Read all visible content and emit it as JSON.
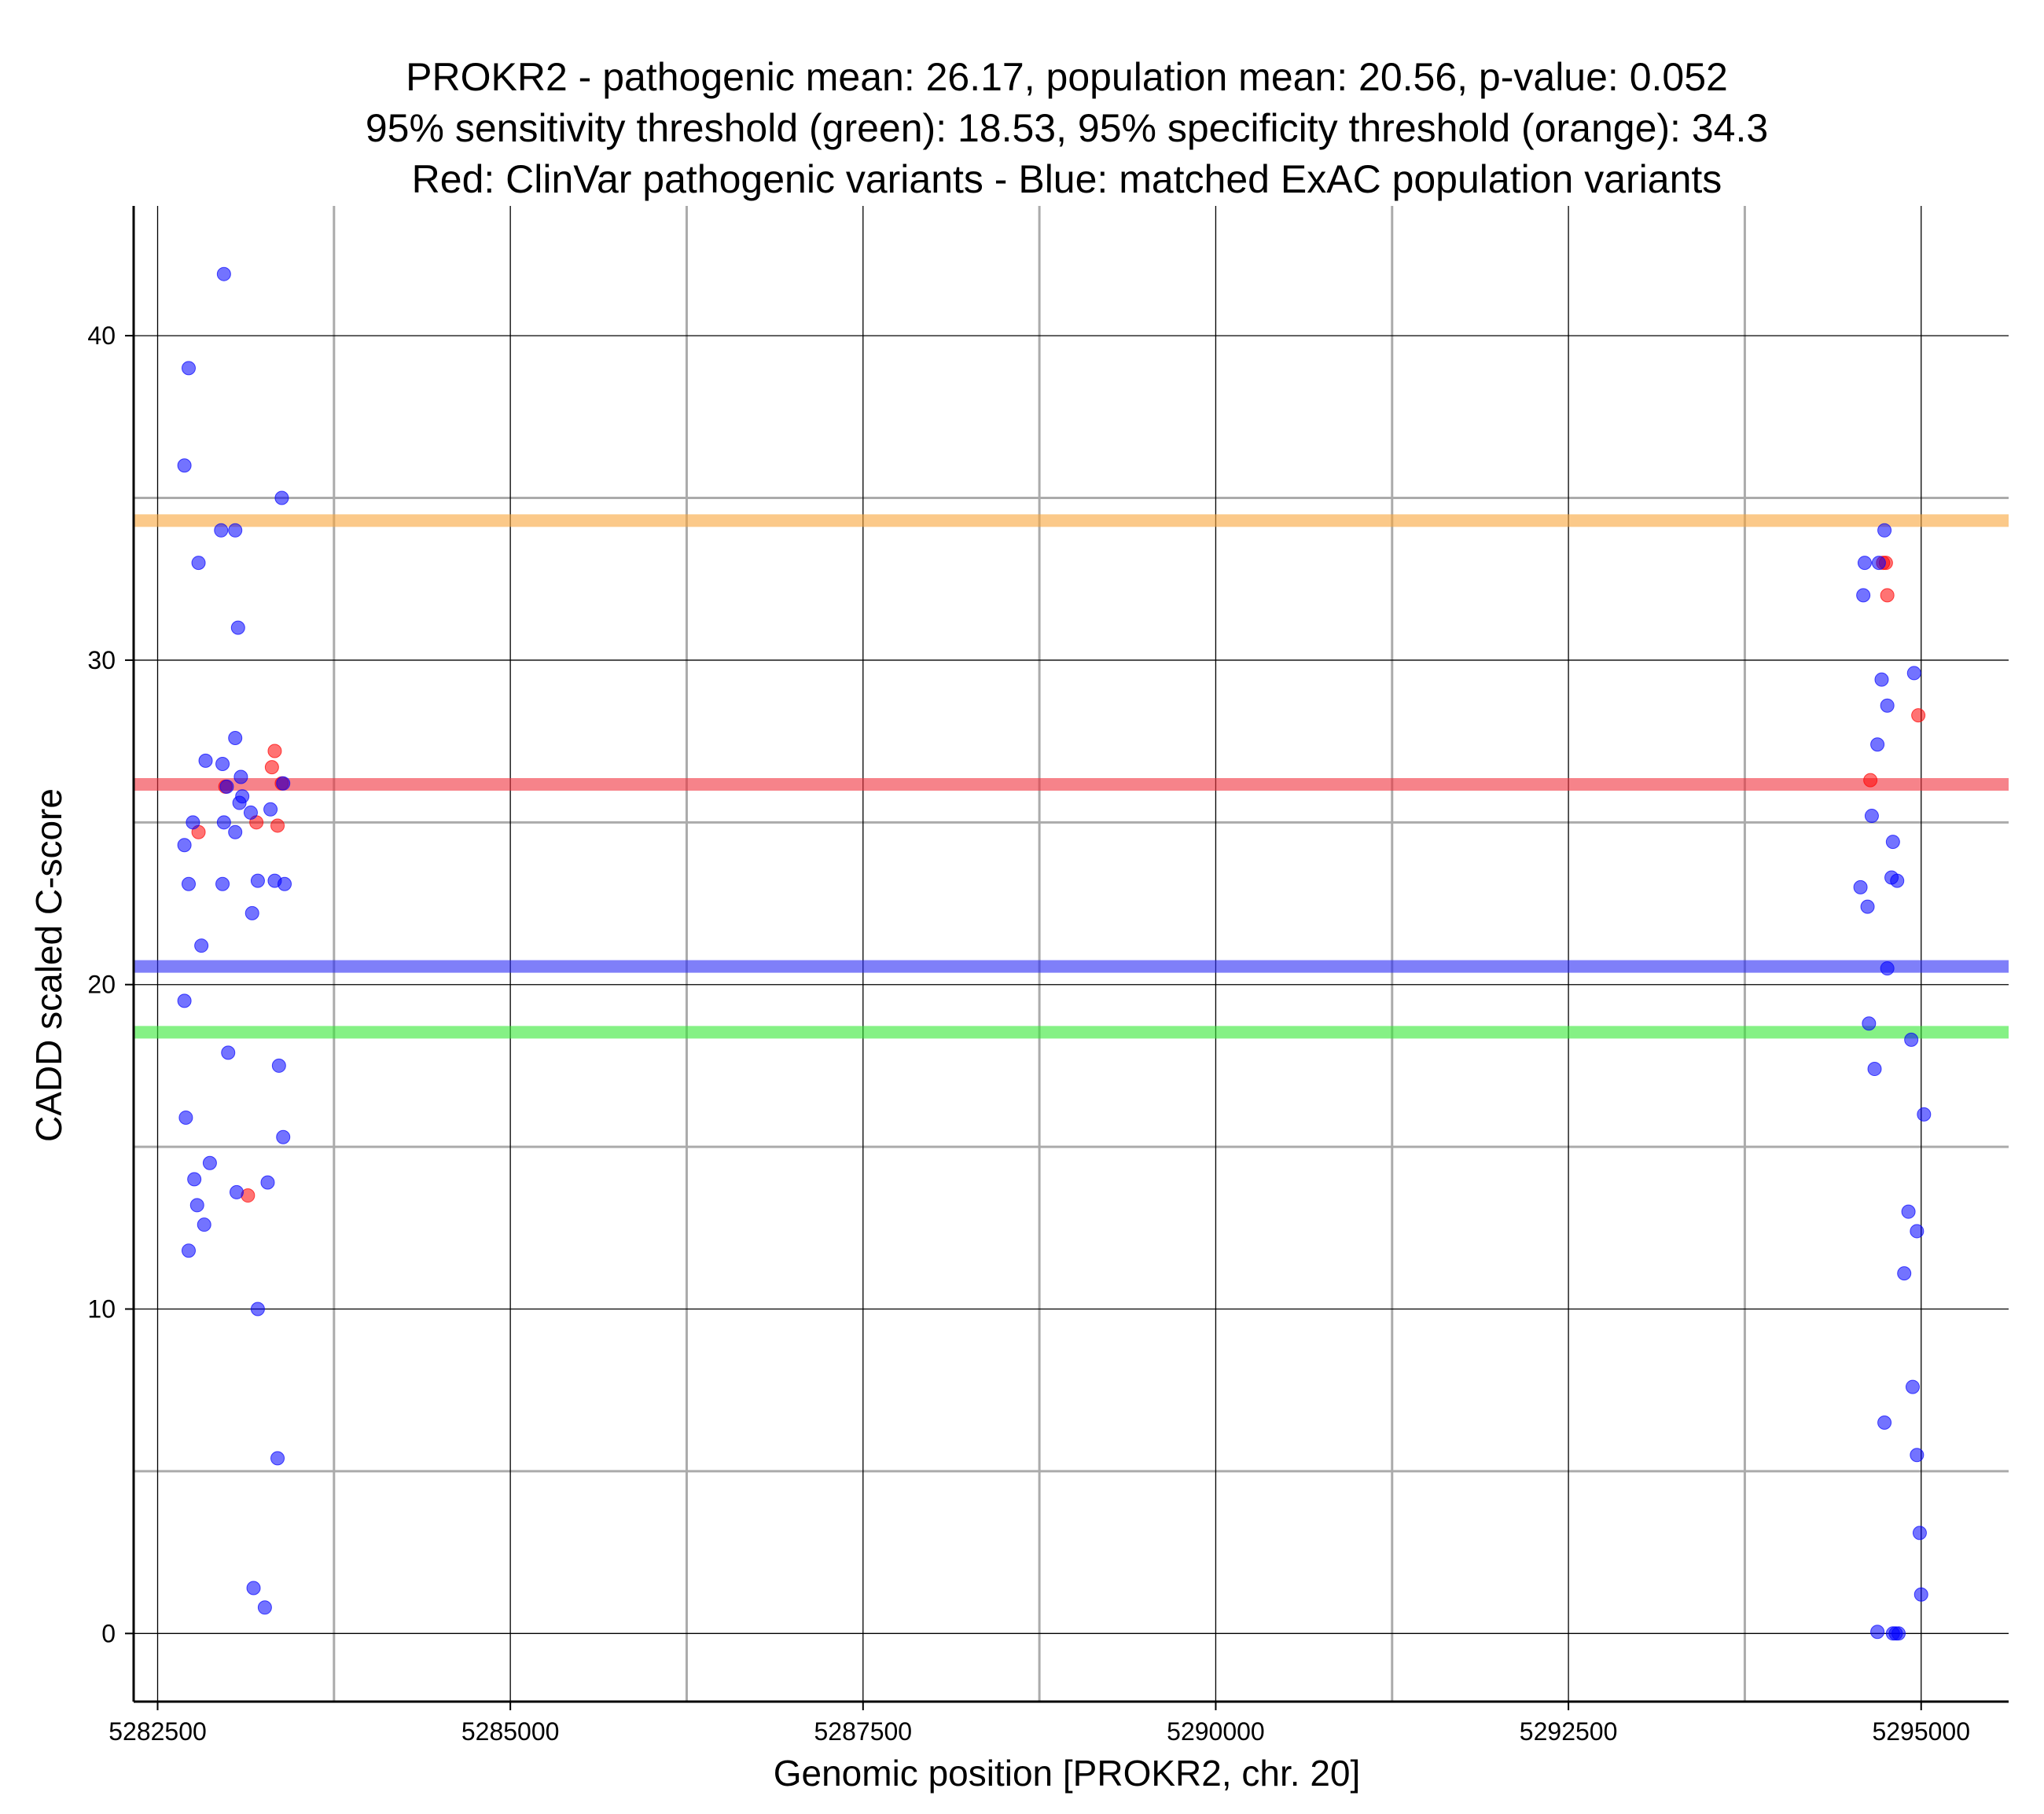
{
  "chart_data": {
    "type": "scatter",
    "title_lines": [
      "PROKR2 - pathogenic mean: 26.17, population mean: 20.56, p-value: 0.052",
      "95% sensitivity threshold (green): 18.53, 95% specificity threshold (orange): 34.3",
      "Red: ClinVar pathogenic variants - Blue: matched ExAC population variants"
    ],
    "xlabel": "Genomic position [PROKR2, chr. 20]",
    "ylabel": "CADD scaled C-score",
    "xlim": [
      5282330,
      5295620
    ],
    "ylim": [
      -2.1,
      44
    ],
    "x_ticks": [
      5282500,
      5285000,
      5287500,
      5290000,
      5292500,
      5295000
    ],
    "x_tick_labels": [
      "5282500",
      "5285000",
      "5287500",
      "5290000",
      "5292500",
      "5295000"
    ],
    "y_ticks": [
      0,
      10,
      20,
      30,
      40
    ],
    "y_tick_labels": [
      "0",
      "10",
      "20",
      "30",
      "40"
    ],
    "minor_x_gridlines": [
      5283750,
      5286250,
      5288750,
      5291250,
      5293750
    ],
    "minor_y_gridlines": [
      5,
      15,
      25,
      35
    ],
    "reference_lines": [
      {
        "name": "95% specificity threshold",
        "y": 34.3,
        "color": "#F9A53B"
      },
      {
        "name": "pathogenic mean",
        "y": 26.17,
        "color": "#F0303C"
      },
      {
        "name": "population mean",
        "y": 20.56,
        "color": "#2A2AF5"
      },
      {
        "name": "95% sensitivity threshold",
        "y": 18.53,
        "color": "#33E833"
      }
    ],
    "series": [
      {
        "name": "ClinVar pathogenic variants",
        "color": "#FF0000",
        "points": [
          [
            5282790,
            24.7
          ],
          [
            5282980,
            26.1
          ],
          [
            5283200,
            25.0
          ],
          [
            5283330,
            27.2
          ],
          [
            5283310,
            26.7
          ],
          [
            5283350,
            24.9
          ],
          [
            5283380,
            26.2
          ],
          [
            5283140,
            13.5
          ],
          [
            5294730,
            33.0
          ],
          [
            5294750,
            33.0
          ],
          [
            5294760,
            32.0
          ],
          [
            5294980,
            28.3
          ],
          [
            5294640,
            26.3
          ]
        ]
      },
      {
        "name": "matched ExAC population variants",
        "color": "#0000FF",
        "points": [
          [
            5282970,
            41.9
          ],
          [
            5282720,
            39.0
          ],
          [
            5282690,
            36.0
          ],
          [
            5283380,
            35.0
          ],
          [
            5282950,
            34.0
          ],
          [
            5283050,
            34.0
          ],
          [
            5282790,
            33.0
          ],
          [
            5283070,
            31.0
          ],
          [
            5283050,
            27.6
          ],
          [
            5282840,
            26.9
          ],
          [
            5282960,
            26.8
          ],
          [
            5283090,
            26.4
          ],
          [
            5282990,
            26.1
          ],
          [
            5283100,
            25.8
          ],
          [
            5283080,
            25.6
          ],
          [
            5283300,
            25.4
          ],
          [
            5283160,
            25.3
          ],
          [
            5282750,
            25.0
          ],
          [
            5282970,
            25.0
          ],
          [
            5283050,
            24.7
          ],
          [
            5282690,
            24.3
          ],
          [
            5282720,
            23.1
          ],
          [
            5282960,
            23.1
          ],
          [
            5283210,
            23.2
          ],
          [
            5283330,
            23.2
          ],
          [
            5283400,
            23.1
          ],
          [
            5283170,
            22.2
          ],
          [
            5282810,
            21.2
          ],
          [
            5282690,
            19.5
          ],
          [
            5283000,
            17.9
          ],
          [
            5283360,
            17.5
          ],
          [
            5283390,
            15.3
          ],
          [
            5282700,
            15.9
          ],
          [
            5282870,
            14.5
          ],
          [
            5282760,
            14.0
          ],
          [
            5283280,
            13.9
          ],
          [
            5283060,
            13.6
          ],
          [
            5282780,
            13.2
          ],
          [
            5282830,
            12.6
          ],
          [
            5282720,
            11.8
          ],
          [
            5283210,
            10.0
          ],
          [
            5283350,
            5.4
          ],
          [
            5283180,
            1.4
          ],
          [
            5283260,
            0.8
          ],
          [
            5283390,
            26.2
          ],
          [
            5294740,
            34.0
          ],
          [
            5294600,
            33.0
          ],
          [
            5294700,
            33.0
          ],
          [
            5294590,
            32.0
          ],
          [
            5294950,
            29.6
          ],
          [
            5294720,
            29.4
          ],
          [
            5294760,
            28.6
          ],
          [
            5294690,
            27.4
          ],
          [
            5294650,
            25.2
          ],
          [
            5294800,
            24.4
          ],
          [
            5294790,
            23.3
          ],
          [
            5294830,
            23.2
          ],
          [
            5294570,
            23.0
          ],
          [
            5294620,
            22.4
          ],
          [
            5294760,
            20.5
          ],
          [
            5294630,
            18.8
          ],
          [
            5294930,
            18.3
          ],
          [
            5294670,
            17.4
          ],
          [
            5295020,
            16.0
          ],
          [
            5294910,
            13.0
          ],
          [
            5294970,
            12.4
          ],
          [
            5294880,
            11.1
          ],
          [
            5294940,
            7.6
          ],
          [
            5294740,
            6.5
          ],
          [
            5294970,
            5.5
          ],
          [
            5294990,
            3.1
          ],
          [
            5295000,
            1.2
          ],
          [
            5294690,
            0.05
          ],
          [
            5294800,
            0.0
          ],
          [
            5294840,
            0.0
          ],
          [
            5294820,
            0.0
          ]
        ]
      }
    ]
  }
}
